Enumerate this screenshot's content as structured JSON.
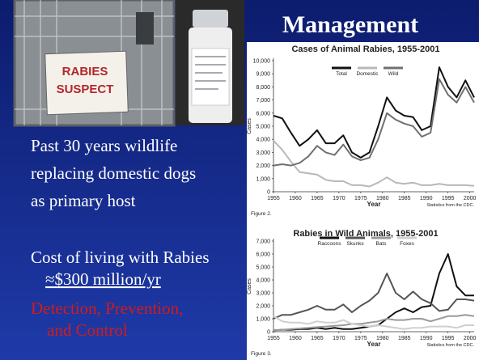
{
  "slide": {
    "title": "Management",
    "sign_lines": [
      "RABIES",
      "SUSPECT"
    ],
    "bullets": [
      "Past 30 years wildlife",
      "replacing domestic dogs",
      "as primary host"
    ],
    "cost_lines": [
      "Cost of living with Rabies",
      "≈$300 million/yr"
    ],
    "red_lines": [
      "Detection, Prevention,",
      "and Control"
    ]
  },
  "chart_data": [
    {
      "type": "line",
      "title": "Cases of Animal Rabies, 1955-2001",
      "xlabel": "Year",
      "ylabel": "Cases",
      "source": "Statistics from the CDC.",
      "figure": "Figure 2.",
      "x": [
        1955,
        1957,
        1959,
        1961,
        1963,
        1965,
        1967,
        1969,
        1971,
        1973,
        1975,
        1977,
        1979,
        1981,
        1983,
        1985,
        1987,
        1989,
        1991,
        1993,
        1995,
        1997,
        1999,
        2001
      ],
      "xlim": [
        1955,
        2001
      ],
      "xticks": [
        1955,
        1960,
        1965,
        1970,
        1975,
        1980,
        1985,
        1990,
        1995,
        2000
      ],
      "ylim": [
        0,
        10000
      ],
      "yticks": [
        0,
        {
          "value": 1000,
          "label": "1,000"
        },
        {
          "value": 2000,
          "label": "2,000"
        },
        {
          "value": 3000,
          "label": "3,000"
        },
        {
          "value": 4000,
          "label": "4,000"
        },
        {
          "value": 5000,
          "label": "5,000"
        },
        {
          "value": 6000,
          "label": "6,000"
        },
        {
          "value": 7000,
          "label": "7,000"
        },
        {
          "value": 8000,
          "label": "8,000"
        },
        {
          "value": 9000,
          "label": "9,000"
        },
        {
          "value": 10000,
          "label": "10,000"
        }
      ],
      "series": [
        {
          "name": "Total",
          "color": "#111111",
          "values": [
            5800,
            5600,
            4500,
            3500,
            4000,
            4700,
            3700,
            3700,
            4300,
            3000,
            2600,
            3000,
            5000,
            7200,
            6200,
            5800,
            5700,
            4700,
            5000,
            9500,
            8000,
            7200,
            8500,
            7200
          ]
        },
        {
          "name": "Domestic",
          "color": "#b8b8b8",
          "values": [
            3900,
            3200,
            2300,
            1500,
            1400,
            1300,
            900,
            800,
            800,
            500,
            500,
            400,
            700,
            1100,
            700,
            600,
            700,
            500,
            500,
            600,
            500,
            500,
            500,
            450
          ]
        },
        {
          "name": "Wild",
          "color": "#707070",
          "values": [
            2000,
            2100,
            2000,
            2200,
            2700,
            3500,
            3000,
            2800,
            3600,
            2700,
            2400,
            2600,
            4000,
            6000,
            5500,
            5200,
            5000,
            4200,
            4500,
            8600,
            7400,
            6800,
            8000,
            6800
          ]
        }
      ]
    },
    {
      "type": "line",
      "title": "Rabies in Wild Animals, 1955-2001",
      "xlabel": "Year",
      "ylabel": "Cases",
      "source": "Statistics from the CDC.",
      "figure": "Figure 3.",
      "x": [
        1955,
        1957,
        1959,
        1961,
        1963,
        1965,
        1967,
        1969,
        1971,
        1973,
        1975,
        1977,
        1979,
        1981,
        1983,
        1985,
        1987,
        1989,
        1991,
        1993,
        1995,
        1997,
        1999,
        2001
      ],
      "xlim": [
        1955,
        2001
      ],
      "xticks": [
        1955,
        1960,
        1965,
        1970,
        1975,
        1980,
        1985,
        1990,
        1995,
        2000
      ],
      "ylim": [
        0,
        7000
      ],
      "yticks": [
        0,
        {
          "value": 1000,
          "label": "1,000"
        },
        {
          "value": 2000,
          "label": "2,000"
        },
        {
          "value": 3000,
          "label": "3,000"
        },
        {
          "value": 4000,
          "label": "4,000"
        },
        {
          "value": 5000,
          "label": "5,000"
        },
        {
          "value": 6000,
          "label": "6,000"
        },
        {
          "value": 7000,
          "label": "7,000"
        }
      ],
      "series": [
        {
          "name": "Raccoons",
          "color": "#111111",
          "values": [
            100,
            150,
            150,
            200,
            200,
            300,
            200,
            300,
            200,
            200,
            300,
            400,
            500,
            1000,
            1500,
            1800,
            1500,
            1900,
            2000,
            4500,
            6000,
            3500,
            2800,
            2800
          ]
        },
        {
          "name": "Skunks",
          "color": "#555555",
          "values": [
            1000,
            1300,
            1300,
            1500,
            1700,
            2000,
            1700,
            1700,
            2100,
            1500,
            2000,
            2400,
            3000,
            4500,
            3000,
            2500,
            3100,
            2500,
            2200,
            1600,
            1700,
            2500,
            2500,
            2400
          ]
        },
        {
          "name": "Bats",
          "color": "#9a9a9a",
          "values": [
            100,
            150,
            200,
            250,
            300,
            350,
            400,
            450,
            500,
            600,
            600,
            700,
            800,
            1000,
            900,
            900,
            1000,
            1000,
            800,
            1000,
            1200,
            1200,
            1300,
            1200
          ]
        },
        {
          "name": "Foxes",
          "color": "#cfcfcf",
          "values": [
            1200,
            800,
            700,
            700,
            600,
            800,
            700,
            700,
            900,
            600,
            500,
            400,
            500,
            400,
            300,
            200,
            300,
            300,
            400,
            400,
            400,
            300,
            500,
            500
          ]
        }
      ]
    }
  ]
}
